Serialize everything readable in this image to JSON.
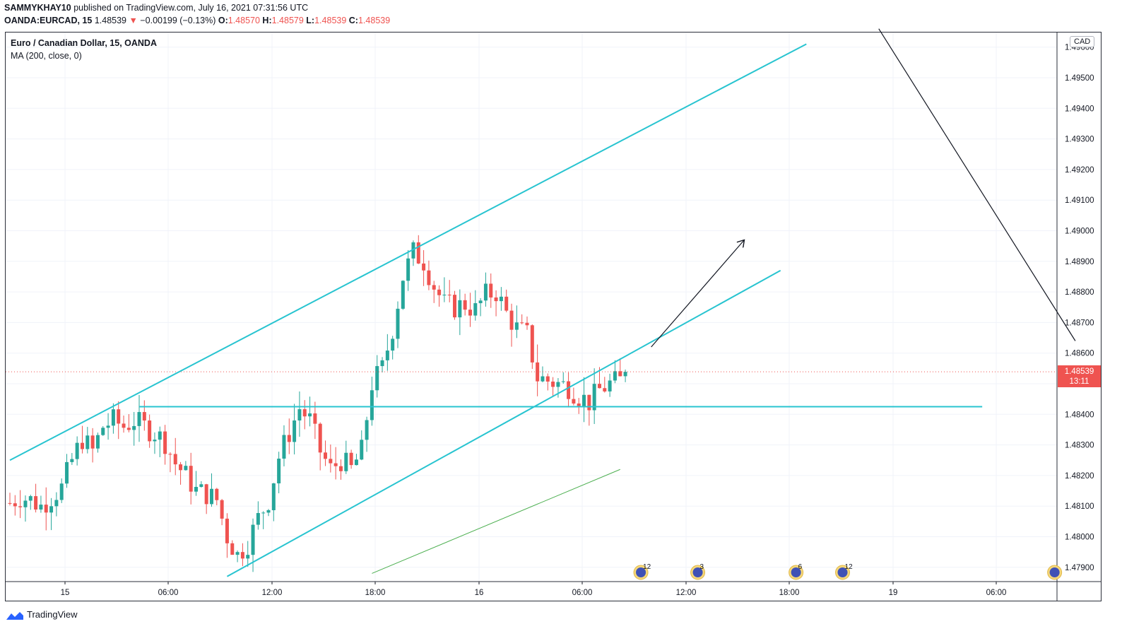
{
  "header": {
    "publisher": "SAMMYKHAY10",
    "published_text": "published on TradingView.com, July 16, 2021 07:31:56 UTC",
    "symbol": "OANDA:EURCAD, 15",
    "last": "1.48539",
    "change_arrow": "▼",
    "change": "−0.00199 (−0.13%)",
    "o_label": "O:",
    "o": "1.48570",
    "h_label": "H:",
    "h": "1.48579",
    "l_label": "L:",
    "l": "1.48539",
    "c_label": "C:",
    "c": "1.48539"
  },
  "legend": {
    "title": "Euro / Canadian Dollar, 15, OANDA",
    "indicator": "MA (200, close, 0)"
  },
  "currency_badge": "CAD",
  "last_price": {
    "value": "1.48539",
    "countdown": "13:11"
  },
  "brand": "TradingView",
  "colors": {
    "up": "#26a69a",
    "down": "#ef5350",
    "channel": "#28c4d0",
    "ma": "#4caf50",
    "drawing": "#131722"
  },
  "chart_data": {
    "type": "candlestick",
    "title": "Euro / Canadian Dollar, 15, OANDA",
    "timeframe": "15",
    "currency": "CAD",
    "x_tick_labels": [
      "15",
      "06:00",
      "12:00",
      "18:00",
      "16",
      "06:00",
      "12:00",
      "18:00",
      "19",
      "06:00"
    ],
    "y_ticks": [
      "1.49600",
      "1.49500",
      "1.49400",
      "1.49300",
      "1.49200",
      "1.49100",
      "1.49000",
      "1.48900",
      "1.48800",
      "1.48700",
      "1.48600",
      "1.48500",
      "1.48400",
      "1.48300",
      "1.48200",
      "1.48100",
      "1.48000",
      "1.47900"
    ],
    "ylim": [
      1.4786,
      1.4965
    ],
    "grid": true,
    "last_value": 1.48539,
    "close_path": [
      [
        0,
        1.4811
      ],
      [
        2,
        1.4813
      ],
      [
        4,
        1.4812
      ],
      [
        6,
        1.481
      ],
      [
        8,
        1.4813
      ],
      [
        10,
        1.4816
      ],
      [
        12,
        1.4825
      ],
      [
        14,
        1.4832
      ],
      [
        16,
        1.4828
      ],
      [
        18,
        1.4836
      ],
      [
        20,
        1.4838
      ],
      [
        22,
        1.4836
      ],
      [
        24,
        1.4838
      ],
      [
        26,
        1.4836
      ],
      [
        28,
        1.4834
      ],
      [
        30,
        1.4831
      ],
      [
        32,
        1.4824
      ],
      [
        34,
        1.482
      ],
      [
        36,
        1.4815
      ],
      [
        38,
        1.4814
      ],
      [
        40,
        1.4812
      ],
      [
        42,
        1.48
      ],
      [
        44,
        1.4794
      ],
      [
        46,
        1.4798
      ],
      [
        48,
        1.4806
      ],
      [
        50,
        1.4812
      ],
      [
        52,
        1.4826
      ],
      [
        54,
        1.4834
      ],
      [
        56,
        1.4842
      ],
      [
        58,
        1.4838
      ],
      [
        60,
        1.4828
      ],
      [
        62,
        1.4822
      ],
      [
        64,
        1.4825
      ],
      [
        66,
        1.4822
      ],
      [
        68,
        1.4828
      ],
      [
        70,
        1.485
      ],
      [
        72,
        1.4855
      ],
      [
        74,
        1.4868
      ],
      [
        76,
        1.4885
      ],
      [
        78,
        1.4893
      ],
      [
        80,
        1.489
      ],
      [
        82,
        1.4882
      ],
      [
        84,
        1.4876
      ],
      [
        86,
        1.4875
      ],
      [
        88,
        1.4876
      ],
      [
        90,
        1.4874
      ],
      [
        92,
        1.4879
      ],
      [
        94,
        1.488
      ],
      [
        96,
        1.4873
      ],
      [
        98,
        1.4868
      ],
      [
        100,
        1.4866
      ],
      [
        102,
        1.4852
      ],
      [
        104,
        1.4851
      ],
      [
        106,
        1.485
      ],
      [
        108,
        1.4849
      ],
      [
        110,
        1.4846
      ],
      [
        112,
        1.4844
      ],
      [
        114,
        1.4848
      ],
      [
        116,
        1.485
      ],
      [
        118,
        1.4851
      ],
      [
        119,
        1.48539
      ]
    ],
    "moving_average": {
      "name": "MA (200, close, 0)",
      "start": [
        70,
        1.4788
      ],
      "end": [
        118,
        1.4822
      ]
    },
    "annotations": [
      {
        "type": "trend_line",
        "label": "channel_upper",
        "from": [
          0,
          1.4825
        ],
        "to": [
          154,
          1.4961
        ]
      },
      {
        "type": "trend_line",
        "label": "channel_lower",
        "from": [
          42,
          1.4787
        ],
        "to": [
          149,
          1.4887
        ]
      },
      {
        "type": "horizontal_line",
        "price": 1.48425,
        "from": 25,
        "to": 188
      },
      {
        "type": "arrow",
        "from": [
          124,
          1.4862
        ],
        "to": [
          142,
          1.4897
        ]
      },
      {
        "type": "trend_line",
        "label": "black_line",
        "from": [
          168,
          1.4966
        ],
        "to": [
          206,
          1.4864
        ]
      }
    ],
    "event_markers": [
      {
        "x": 122,
        "count": "12"
      },
      {
        "x": 133,
        "count": "3"
      },
      {
        "x": 152,
        "count": "6"
      },
      {
        "x": 161,
        "count": "12"
      },
      {
        "x": 202,
        "count": ""
      }
    ]
  }
}
